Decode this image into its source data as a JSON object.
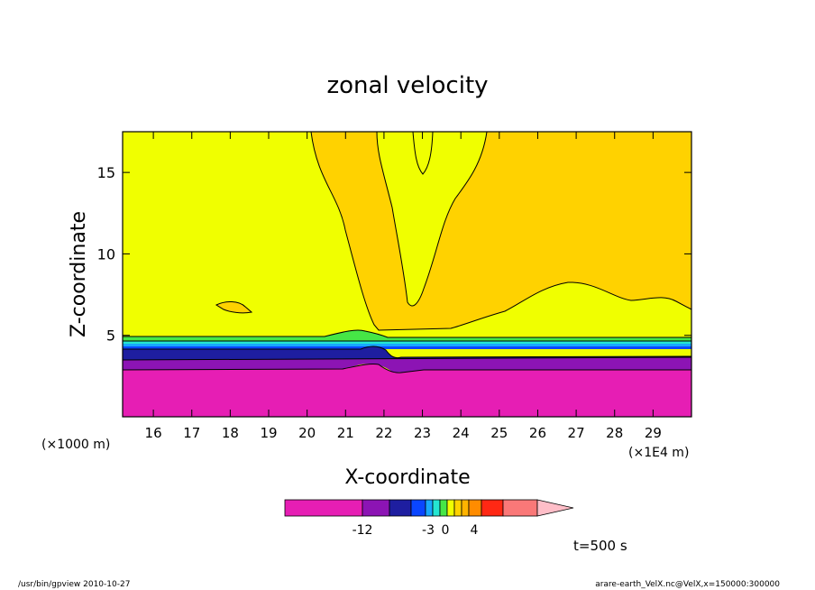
{
  "chart_data": {
    "type": "contour",
    "title": "zonal velocity",
    "xlabel": "X-coordinate",
    "ylabel": "Z-coordinate",
    "x_unit_left": "(×1000 m)",
    "x_unit_right": "(×1E4 m)",
    "xlim": [
      15.2,
      30.0
    ],
    "ylim": [
      0,
      17.5
    ],
    "x_ticks": [
      "16",
      "17",
      "18",
      "19",
      "20",
      "21",
      "22",
      "23",
      "24",
      "25",
      "26",
      "27",
      "28",
      "29"
    ],
    "y_ticks": [
      "5",
      "10",
      "15"
    ],
    "colorbar": {
      "colors": [
        "#e61eb4",
        "#8c14b4",
        "#1e1ea0",
        "#0a46ff",
        "#18a8ff",
        "#24e6d2",
        "#46e646",
        "#f0ff00",
        "#ffd200",
        "#ffb400",
        "#ff8c00",
        "#ff2814",
        "#fa7878",
        "#ffbec8"
      ],
      "labels": [
        "-12",
        "-3",
        "0",
        "4"
      ]
    },
    "annotation": "t=500 s"
  },
  "footer": {
    "left": "/usr/bin/gpview   2010-10-27",
    "right": "arare-earth_VelX.nc@VelX,x=150000:300000"
  }
}
